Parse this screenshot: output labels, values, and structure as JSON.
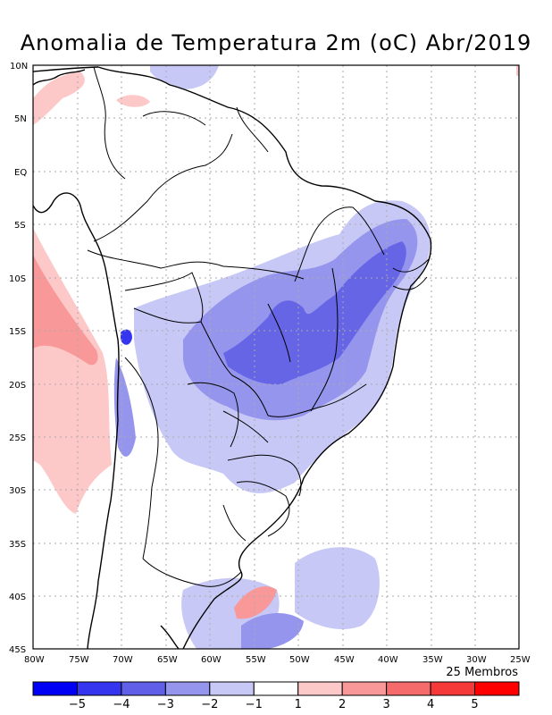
{
  "title": "Anomalia de Temperatura 2m (oC) Abr/2019",
  "members_note": "25 Membros",
  "lat_labels": [
    "10N",
    "5N",
    "EQ",
    "5S",
    "10S",
    "15S",
    "20S",
    "25S",
    "30S",
    "35S",
    "40S",
    "45S"
  ],
  "lon_labels": [
    "80W",
    "75W",
    "70W",
    "65W",
    "60W",
    "55W",
    "50W",
    "45W",
    "40W",
    "35W",
    "30W",
    "25W"
  ],
  "colorbar": {
    "labels": [
      "-5",
      "-4",
      "-3",
      "-2",
      "-1",
      "1",
      "2",
      "3",
      "4",
      "5"
    ],
    "colors": [
      "#0000f5",
      "#3535f0",
      "#5f5fe8",
      "#9595ee",
      "#c8c8f6",
      "#ffffff",
      "#fcc8c8",
      "#f99898",
      "#f56a6a",
      "#f53838",
      "#ff0000"
    ]
  },
  "chart_data": {
    "type": "map",
    "variable": "Anomalia de Temperatura 2m (oC)",
    "period": "Abr/2019",
    "ensemble_members": 25,
    "lat_range": [
      -45,
      10
    ],
    "lon_range": [
      -80,
      -25
    ],
    "contour_levels": [
      -5,
      -4,
      -3,
      -2,
      -1,
      1,
      2,
      3,
      4,
      5
    ],
    "grid": true
  }
}
